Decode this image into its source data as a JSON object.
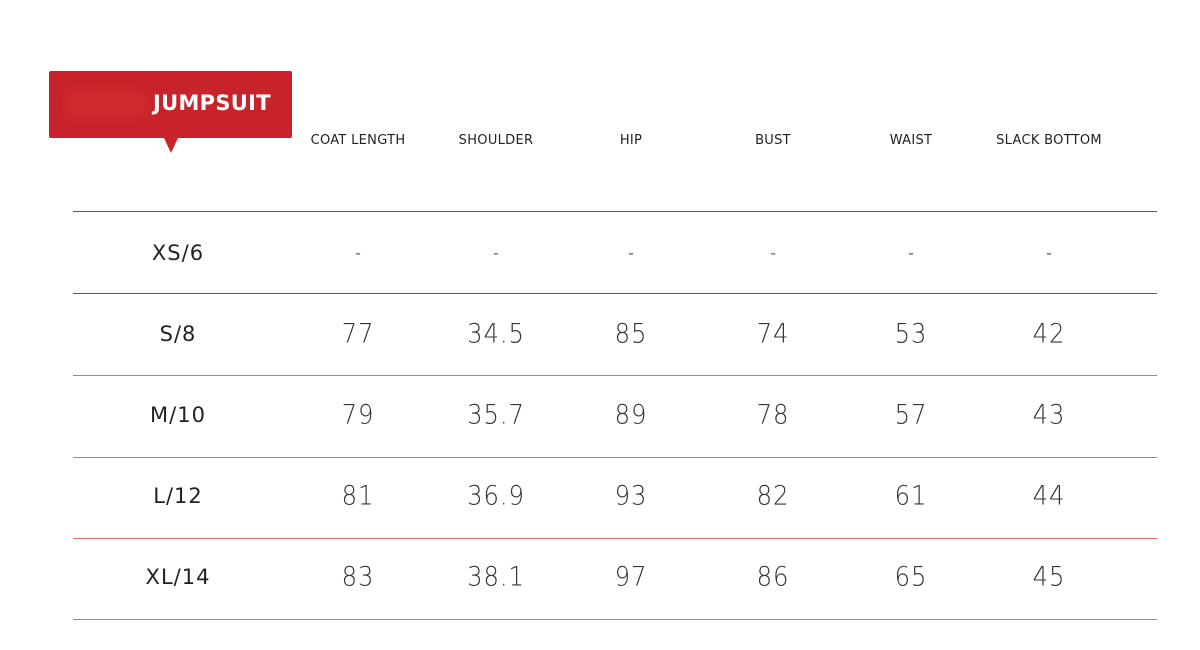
{
  "title": "JUMPSUIT",
  "colors": {
    "accent": "#c8232b"
  },
  "columns": [
    "COAT LENGTH",
    "SHOULDER",
    "HIP",
    "BUST",
    "WAIST",
    "SLACK BOTTOM"
  ],
  "rows": [
    {
      "size": "XS/6",
      "values": [
        "-",
        "-",
        "-",
        "-",
        "-",
        "-"
      ]
    },
    {
      "size": "S/8",
      "values": [
        "77",
        "34.5",
        "85",
        "74",
        "53",
        "42"
      ]
    },
    {
      "size": "M/10",
      "values": [
        "79",
        "35.7",
        "89",
        "78",
        "57",
        "43"
      ]
    },
    {
      "size": "L/12",
      "values": [
        "81",
        "36.9",
        "93",
        "82",
        "61",
        "44"
      ]
    },
    {
      "size": "XL/14",
      "values": [
        "83",
        "38.1",
        "97",
        "86",
        "65",
        "45"
      ]
    }
  ]
}
